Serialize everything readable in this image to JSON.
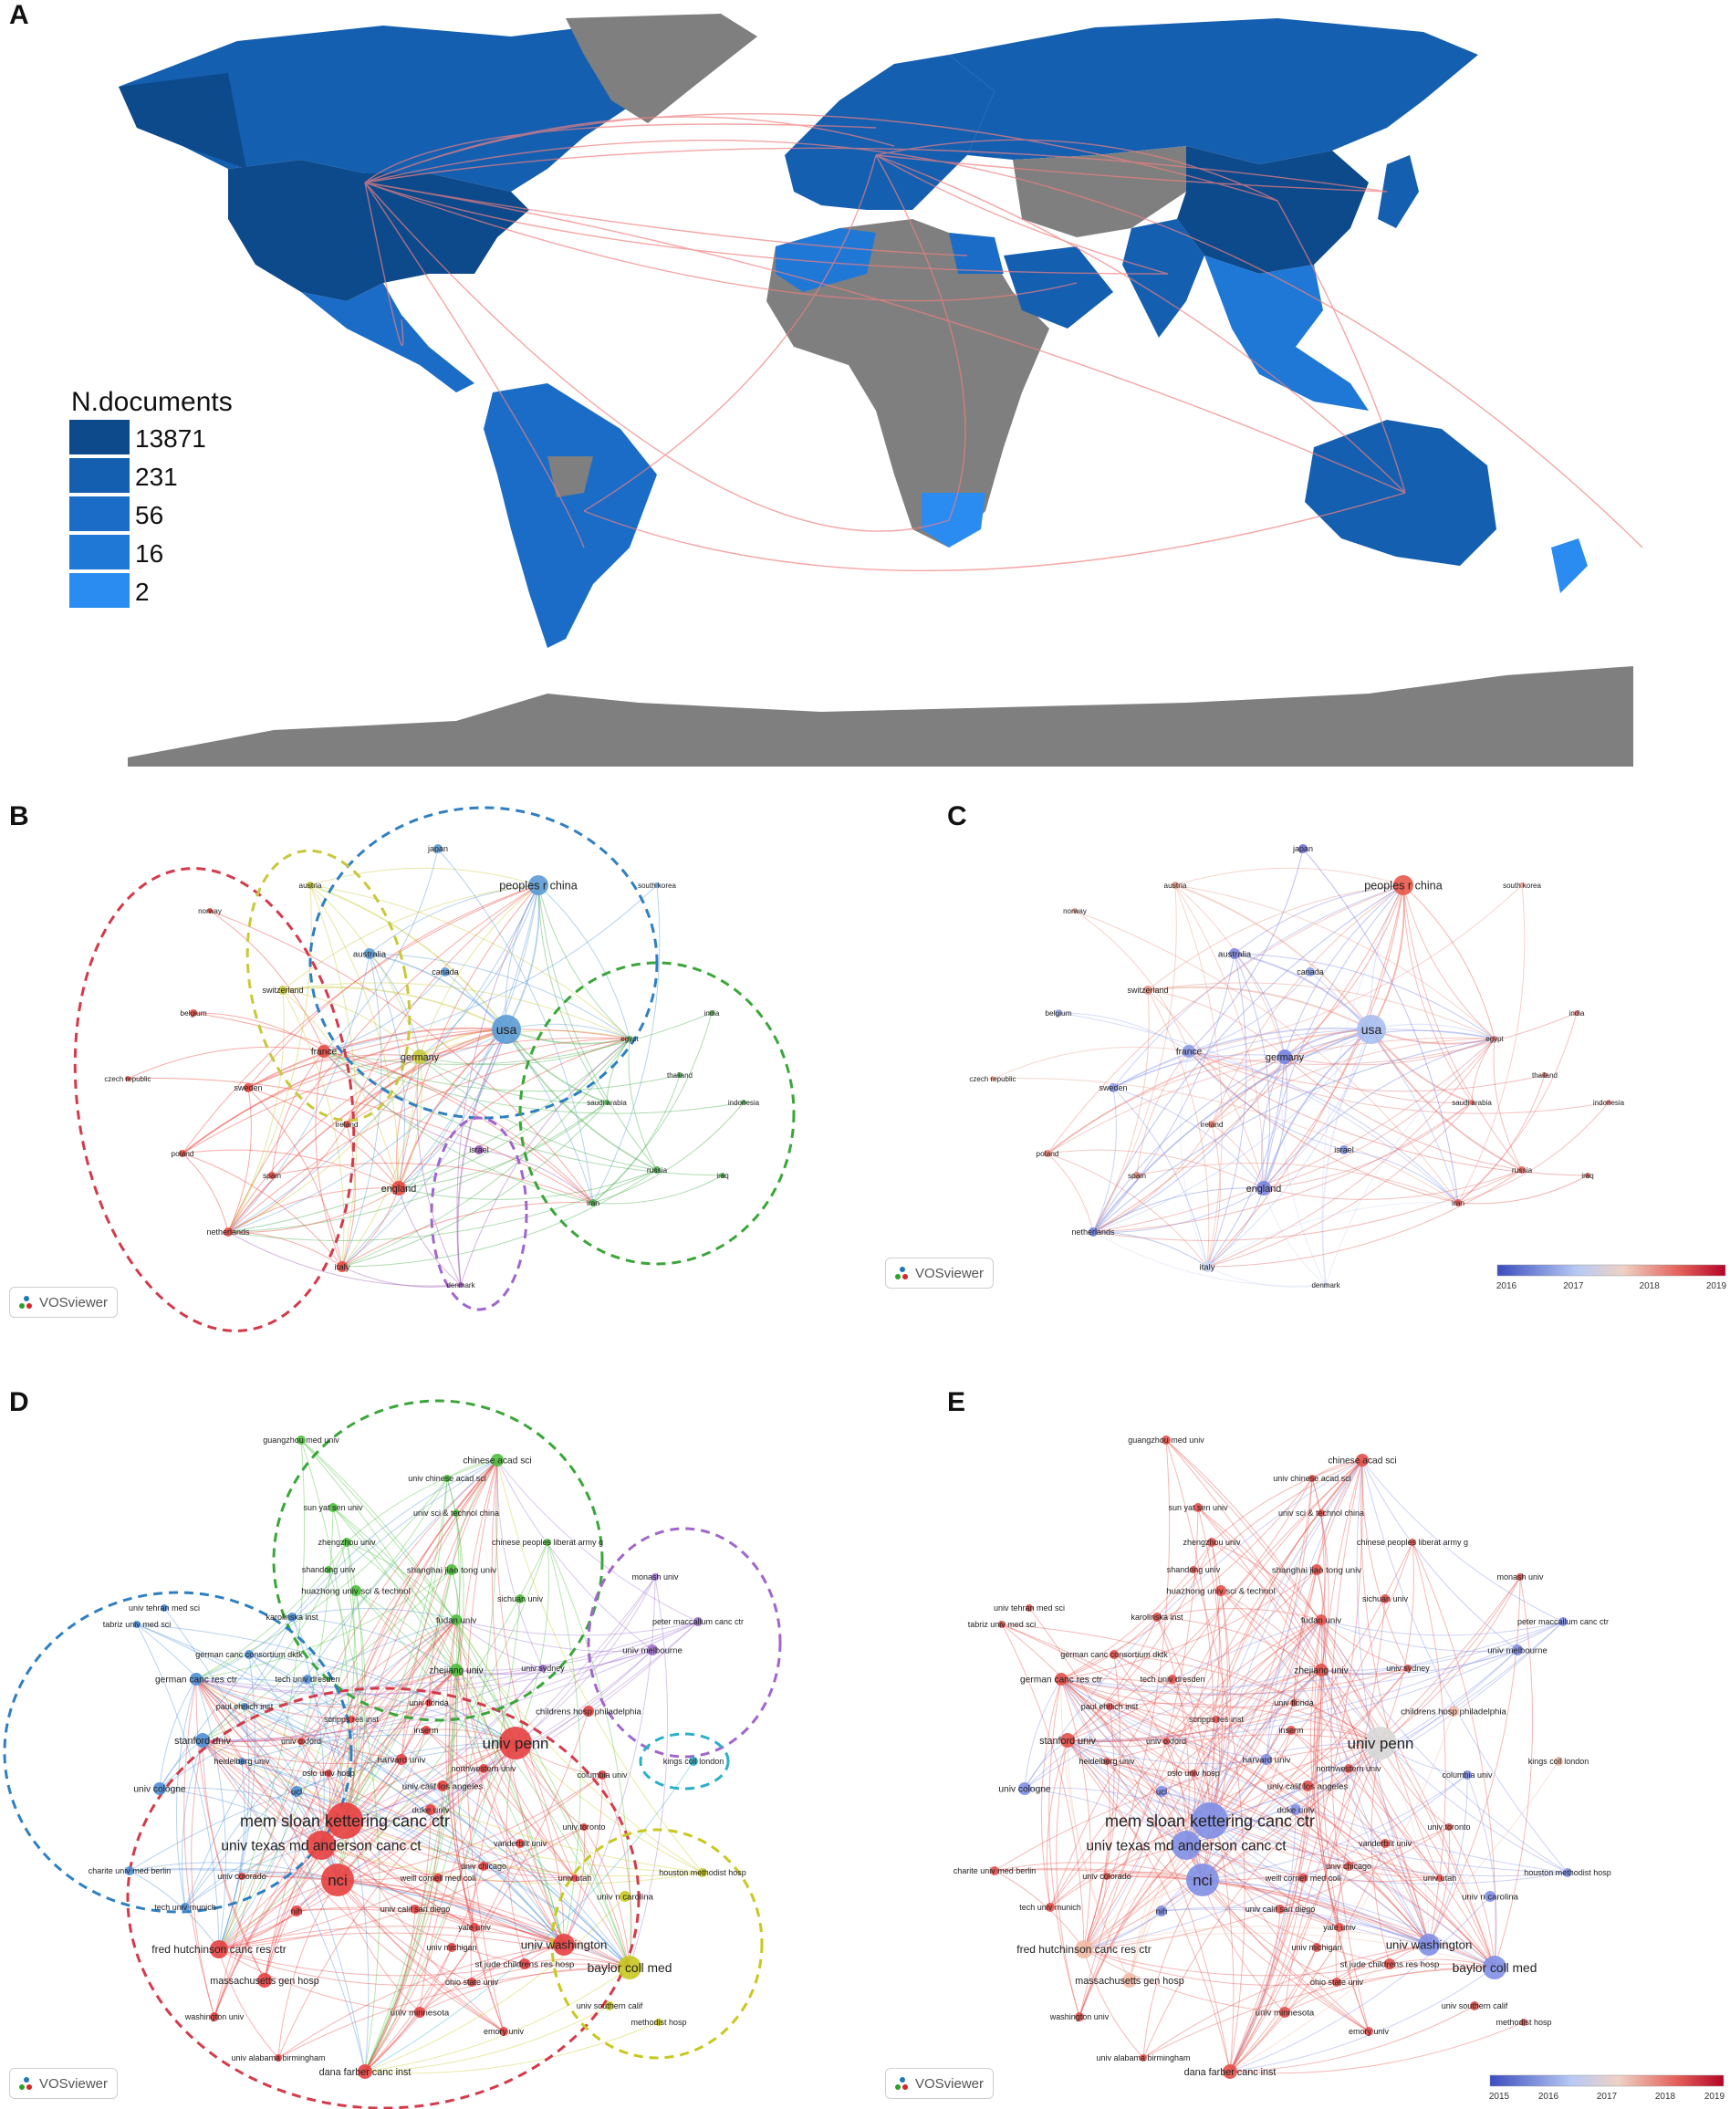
{
  "panels": {
    "a": {
      "letter": "A"
    },
    "b": {
      "letter": "B"
    },
    "c": {
      "letter": "C"
    },
    "d": {
      "letter": "D"
    },
    "e": {
      "letter": "E"
    }
  },
  "map": {
    "legend_title": "N.documents",
    "legend": [
      {
        "label": "13871",
        "color": "#0d4a8c"
      },
      {
        "label": "231",
        "color": "#155fb0"
      },
      {
        "label": "56",
        "color": "#1a6cc6"
      },
      {
        "label": "16",
        "color": "#1f78d6"
      },
      {
        "label": "2",
        "color": "#2a8cf0"
      }
    ],
    "colors": {
      "land_none": "#7f7f7f",
      "link": "#f08080"
    }
  },
  "vosviewer": {
    "badge": "VOSviewer"
  },
  "country_network": {
    "labels": {
      "japan": "japan",
      "peoples_r_china": "peoples r china",
      "south_korea": "south korea",
      "austria": "austria",
      "norway": "norway",
      "australia": "australia",
      "canada": "canada",
      "switzerland": "switzerland",
      "belgium": "belgium",
      "usa": "usa",
      "india": "india",
      "egypt": "egypt",
      "france": "france",
      "germany": "germany",
      "czech_republic": "czech republic",
      "sweden": "sweden",
      "thailand": "thailand",
      "saudi_arabia": "saudi arabia",
      "indonesia": "indonesia",
      "ireland": "ireland",
      "israel": "israel",
      "poland": "poland",
      "spain": "spain",
      "russia": "russia",
      "iraq": "iraq",
      "england": "england",
      "iran": "iran",
      "netherlands": "netherlands",
      "italy": "italy",
      "denmark": "denmark"
    },
    "colorbar_ticks": [
      "2016",
      "2017",
      "2018",
      "2019"
    ]
  },
  "institution_network": {
    "labels": {
      "guangzhou_med_univ": "guangzhou med univ",
      "chinese_acad_sci": "chinese acad sci",
      "univ_chinese_acad_sci": "univ chinese acad sci",
      "sun_yat_sen_univ": "sun yat sen univ",
      "univ_sci_technol_china": "univ sci & technol china",
      "zhengzhou_univ": "zhengzhou univ",
      "chinese_peoples_liberat_army_g": "chinese peoples liberat army g",
      "shandong_univ": "shandong univ",
      "shanghai_jiao_tong_univ": "shanghai jiao tong univ",
      "monash_univ": "monash univ",
      "univ_tehran_med_sci": "univ tehran med sci",
      "karolinska_inst": "karolinska inst",
      "huazhong_univ": "huazhong univ sci & technol",
      "sichuan_univ": "sichuan univ",
      "peter_maccallum": "peter maccallum canc ctr",
      "tabriz_univ_med_sci": "tabriz univ med sci",
      "fudan_univ": "fudan univ",
      "univ_melbourne": "univ melbourne",
      "german_canc_consortium": "german canc consortium dktk",
      "zhejiang_univ": "zhejiang univ",
      "univ_sydney": "univ sydney",
      "german_canc_res_ctr": "german canc res ctr",
      "tech_univ_dresden": "tech univ dresden",
      "univ_florida": "univ florida",
      "paul_ehrlich_inst": "paul ehrlich inst",
      "childrens_hosp_philadelphia": "childrens hosp philadelphia",
      "scripps_res_inst": "scripps res inst",
      "inserm": "inserm",
      "stanford_univ": "stanford univ",
      "univ_oxford": "univ oxford",
      "univ_penn": "univ penn",
      "kings_coll_london": "kings coll london",
      "harvard_univ": "harvard univ",
      "heidelberg_univ": "heidelberg univ",
      "northwestern_univ": "northwestern univ",
      "oslo_univ_hosp": "oslo univ hosp",
      "columbia_univ": "columbia univ",
      "univ_calif_los_angeles": "univ calif los angeles",
      "univ_cologne": "univ cologne",
      "ucl": "ucl",
      "duke_univ": "duke univ",
      "mem_sloan_kettering": "mem sloan kettering canc ctr",
      "univ_toronto": "univ toronto",
      "vanderbilt_univ": "vanderbilt univ",
      "univ_texas_md_anderson": "univ texas md anderson canc ct",
      "charite_univ_med_berlin": "charite univ med berlin",
      "univ_chicago": "univ chicago",
      "houston_methodist_hosp": "houston methodist hosp",
      "univ_colorado": "univ colorado",
      "weill_cornell_med_coll": "weill cornell med coll",
      "univ_utah": "univ utah",
      "nci": "nci",
      "univ_n_carolina": "univ n carolina",
      "tech_univ_munich": "tech univ munich",
      "nih": "nih",
      "univ_calif_san_diego": "univ calif san diego",
      "yale_univ": "yale univ",
      "fred_hutchinson": "fred hutchinson canc res ctr",
      "univ_michigan": "univ michigan",
      "univ_washington": "univ washington",
      "st_jude": "st jude childrens res hosp",
      "baylor_coll_med": "baylor coll med",
      "massachusetts_gen_hosp": "massachusetts gen hosp",
      "ohio_state_univ": "ohio state univ",
      "univ_southern_calif": "univ southern calif",
      "washington_univ": "washington univ",
      "univ_minnesota": "univ minnesota",
      "methodist_hosp": "methodist hosp",
      "emory_univ": "emory univ",
      "univ_alabama_birmingham": "univ alabama birmingham",
      "dana_farber": "dana farber canc inst"
    },
    "colorbar_ticks": [
      "2015",
      "2016",
      "2017",
      "2018",
      "2019"
    ]
  }
}
